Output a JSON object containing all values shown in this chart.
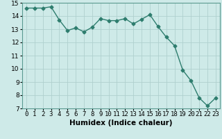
{
  "title": "",
  "xlabel": "Humidex (Indice chaleur)",
  "x": [
    0,
    1,
    2,
    3,
    4,
    5,
    6,
    7,
    8,
    9,
    10,
    11,
    12,
    13,
    14,
    15,
    16,
    17,
    18,
    19,
    20,
    21,
    22,
    23
  ],
  "y": [
    14.6,
    14.6,
    14.6,
    14.7,
    13.7,
    12.9,
    13.1,
    12.8,
    13.15,
    13.8,
    13.65,
    13.65,
    13.8,
    13.4,
    13.75,
    14.1,
    13.2,
    12.4,
    11.75,
    9.9,
    9.1,
    7.8,
    7.2,
    7.8
  ],
  "line_color": "#2e7d6e",
  "marker": "D",
  "marker_size": 2.5,
  "bg_color": "#ceeae8",
  "grid_color": "#b0d0ce",
  "ylim": [
    7,
    15
  ],
  "xlim": [
    -0.5,
    23.5
  ],
  "yticks": [
    7,
    8,
    9,
    10,
    11,
    12,
    13,
    14,
    15
  ],
  "xtick_labels": [
    "0",
    "1",
    "2",
    "3",
    "4",
    "5",
    "6",
    "7",
    "8",
    "9",
    "10",
    "11",
    "12",
    "13",
    "14",
    "15",
    "16",
    "17",
    "18",
    "19",
    "20",
    "21",
    "22",
    "23"
  ],
  "label_fontsize": 7.5,
  "tick_fontsize": 6.5,
  "linewidth": 1.0
}
